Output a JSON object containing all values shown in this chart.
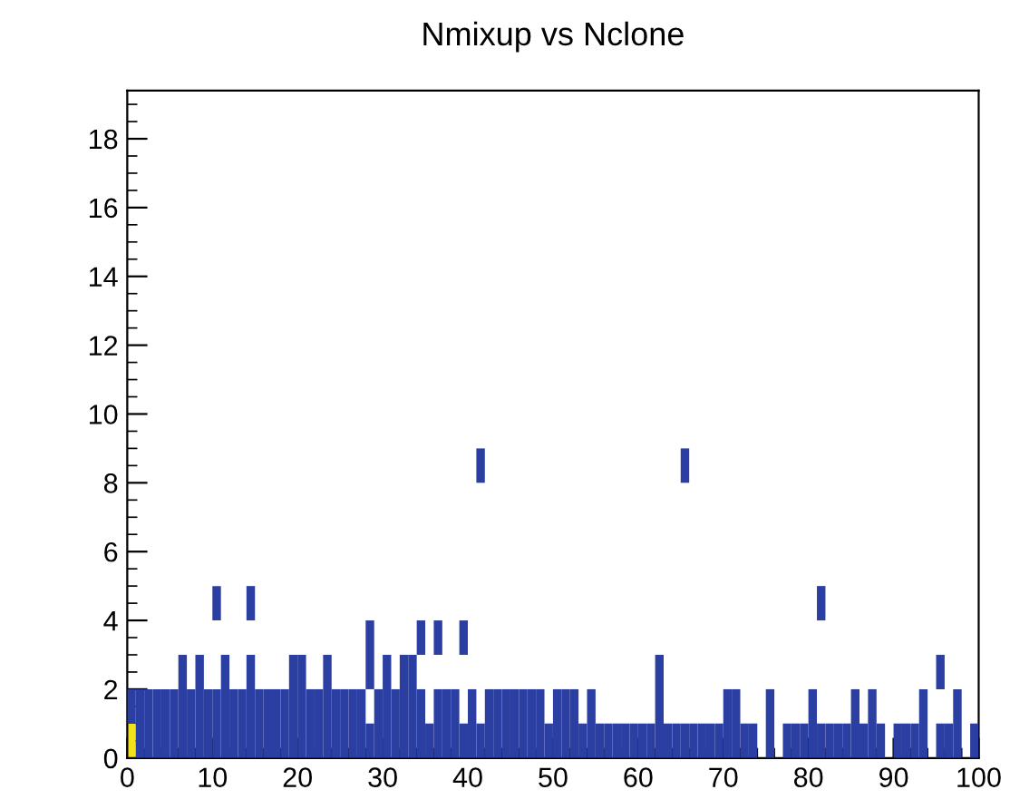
{
  "chart_data": {
    "type": "bar",
    "title": "Nmixup vs Nclone",
    "grid": false,
    "xlim": [
      0,
      100
    ],
    "xticks": [
      0,
      10,
      20,
      30,
      40,
      50,
      60,
      70,
      80,
      90,
      100
    ],
    "ylim": [
      0,
      19.4
    ],
    "yticks": [
      0,
      2,
      4,
      6,
      8,
      10,
      12,
      14,
      16,
      18
    ],
    "series": [
      {
        "color": "#f2e21a",
        "x": [
          0.5
        ],
        "base": [
          0
        ],
        "values": [
          1
        ]
      },
      {
        "color": "#2b3ea2",
        "x": [
          0.5,
          1.5,
          2.5,
          3.5,
          4.5,
          5.5,
          6.5,
          7.5,
          8.5,
          9.5,
          10.5,
          11.5,
          12.5,
          13.5,
          14.5,
          15.5,
          16.5,
          17.5,
          18.5,
          19.5,
          20.5,
          21.5,
          22.5,
          23.5,
          24.5,
          25.5,
          26.5,
          27.5,
          28.5,
          29.5,
          30.5,
          31.5,
          32.5,
          33.5,
          34.5,
          35.5,
          36.5,
          37.5,
          38.5,
          39.5,
          40.5,
          41.5,
          42.5,
          43.5,
          44.5,
          45.5,
          46.5,
          47.5,
          48.5,
          49.5,
          50.5,
          51.5,
          52.5,
          53.5,
          54.5,
          55.5,
          56.5,
          57.5,
          58.5,
          59.5,
          60.5,
          61.5,
          62.5,
          63.5,
          64.5,
          65.5,
          66.5,
          67.5,
          68.5,
          69.5,
          70.5,
          71.5,
          72.5,
          73.5,
          75.5,
          77.5,
          78.5,
          79.5,
          80.5,
          81.5,
          82.5,
          83.5,
          84.5,
          85.5,
          86.5,
          87.5,
          88.5,
          90.5,
          91.5,
          92.5,
          93.5,
          95.5,
          96.5,
          97.5,
          99.5
        ],
        "base": [
          1,
          0,
          0,
          0,
          0,
          0,
          0,
          0,
          0,
          0,
          0,
          0,
          0,
          0,
          0,
          0,
          0,
          0,
          0,
          0,
          0,
          0,
          0,
          0,
          0,
          0,
          0,
          0,
          0,
          0,
          0,
          0,
          0,
          0,
          0,
          0,
          0,
          0,
          0,
          0,
          0,
          0,
          0,
          0,
          0,
          0,
          0,
          0,
          0,
          0,
          0,
          0,
          0,
          0,
          0,
          0,
          0,
          0,
          0,
          0,
          0,
          0,
          0,
          0,
          0,
          0,
          0,
          0,
          0,
          0,
          0,
          0,
          0,
          0,
          0,
          0,
          0,
          0,
          0,
          0,
          0,
          0,
          0,
          0,
          0,
          0,
          0,
          0,
          0,
          0,
          0,
          0,
          0,
          0,
          0
        ],
        "values": [
          1,
          2,
          2,
          2,
          2,
          2,
          3,
          2,
          3,
          2,
          2,
          3,
          2,
          2,
          3,
          2,
          2,
          2,
          2,
          3,
          3,
          2,
          2,
          3,
          2,
          2,
          2,
          2,
          1,
          2,
          3,
          2,
          3,
          3,
          2,
          1,
          2,
          2,
          2,
          1,
          2,
          1,
          2,
          2,
          2,
          2,
          2,
          2,
          2,
          1,
          2,
          2,
          2,
          1,
          2,
          1,
          1,
          1,
          1,
          1,
          1,
          1,
          3,
          1,
          1,
          1,
          1,
          1,
          1,
          1,
          2,
          2,
          1,
          1,
          2,
          1,
          1,
          1,
          2,
          1,
          1,
          1,
          1,
          2,
          1,
          2,
          1,
          1,
          1,
          1,
          2,
          1,
          1,
          2,
          1
        ]
      },
      {
        "color": "#2b3ea2",
        "x": [
          10.5,
          14.5,
          28.5,
          34.5,
          36.5,
          39.5,
          41.5,
          65.5,
          81.5,
          95.5
        ],
        "base": [
          4,
          4,
          2,
          3,
          3,
          3,
          8,
          8,
          4,
          2
        ],
        "values": [
          1,
          1,
          2,
          1,
          1,
          1,
          1,
          1,
          1,
          1
        ]
      }
    ]
  }
}
